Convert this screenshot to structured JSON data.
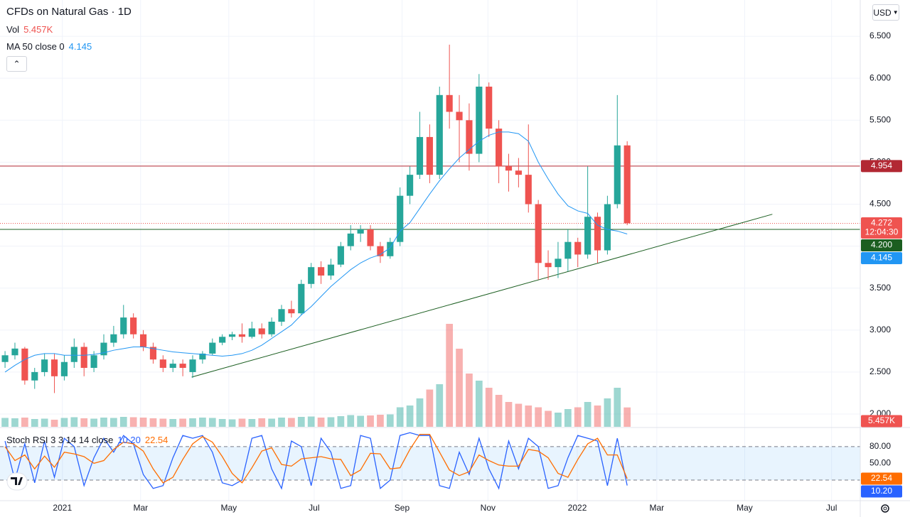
{
  "ui": {
    "currency": "USD"
  },
  "chart_data": [
    {
      "type": "candlestick",
      "title": "CFDs on Natural Gas · 1D",
      "xlim": [
        -0.51,
        86.6
      ],
      "xticks": [
        {
          "value": 5.81,
          "label": "2021"
        },
        {
          "value": 13.73,
          "label": "Mar"
        },
        {
          "value": 22.66,
          "label": "May"
        },
        {
          "value": 31.3,
          "label": "Jul"
        },
        {
          "value": 40.2,
          "label": "Sep"
        },
        {
          "value": 48.9,
          "label": "Nov"
        },
        {
          "value": 57.95,
          "label": "2022"
        },
        {
          "value": 66.0,
          "label": "Mar"
        },
        {
          "value": 74.9,
          "label": "May"
        },
        {
          "value": 83.7,
          "label": "Jul"
        }
      ],
      "ylim": [
        1.848,
        6.932
      ],
      "yticks": [
        {
          "value": 2,
          "label": "2.000"
        },
        {
          "value": 2.5,
          "label": "2.500"
        },
        {
          "value": 3,
          "label": "3.000"
        },
        {
          "value": 3.5,
          "label": "3.500"
        },
        {
          "value": 4,
          "label": "4.000"
        },
        {
          "value": 4.5,
          "label": "4.500"
        },
        {
          "value": 5,
          "label": "5.000"
        },
        {
          "value": 5.5,
          "label": "5.500"
        },
        {
          "value": 6,
          "label": "6.000"
        },
        {
          "value": 6.5,
          "label": "6.500"
        }
      ],
      "grid": true,
      "up_color": "#26a69a",
      "down_color": "#ef5350",
      "open": [
        2.62,
        2.7,
        2.78,
        2.4,
        2.5,
        2.65,
        2.45,
        2.62,
        2.8,
        2.55,
        2.7,
        2.85,
        2.95,
        3.15,
        2.95,
        2.8,
        2.65,
        2.55,
        2.6,
        2.5,
        2.65,
        2.72,
        2.85,
        2.92,
        2.95,
        2.92,
        3.02,
        2.95,
        3.1,
        3.25,
        3.2,
        3.55,
        3.75,
        3.65,
        3.78,
        4.0,
        4.15,
        4.2,
        4.0,
        3.88,
        4.05,
        4.6,
        4.85,
        5.3,
        4.85,
        5.8,
        5.6,
        5.5,
        5.1,
        5.9,
        5.4,
        4.95,
        4.9,
        4.85,
        4.5,
        3.8,
        3.75,
        3.85,
        4.05,
        3.9,
        4.35,
        3.95,
        4.5,
        5.2
      ],
      "high": [
        2.75,
        2.85,
        2.8,
        2.55,
        2.72,
        2.72,
        2.7,
        2.9,
        2.85,
        2.75,
        2.95,
        3.05,
        3.3,
        3.2,
        3.0,
        2.85,
        2.7,
        2.65,
        2.65,
        2.7,
        2.75,
        2.9,
        2.95,
        2.98,
        3.08,
        3.1,
        3.08,
        3.15,
        3.3,
        3.35,
        3.6,
        3.8,
        3.82,
        3.85,
        4.05,
        4.25,
        4.25,
        4.25,
        4.05,
        4.1,
        4.7,
        4.95,
        5.6,
        5.45,
        5.9,
        6.4,
        5.8,
        5.7,
        6.05,
        5.95,
        5.5,
        5.1,
        5.05,
        5.45,
        4.55,
        3.95,
        4.05,
        4.2,
        4.1,
        4.95,
        4.4,
        4.6,
        5.8,
        5.25
      ],
      "low": [
        2.55,
        2.65,
        2.35,
        2.3,
        2.45,
        2.25,
        2.4,
        2.55,
        2.45,
        2.5,
        2.65,
        2.8,
        2.9,
        2.9,
        2.75,
        2.6,
        2.5,
        2.5,
        2.45,
        2.43,
        2.6,
        2.7,
        2.82,
        2.88,
        2.85,
        2.9,
        2.9,
        2.92,
        3.05,
        3.15,
        3.18,
        3.5,
        3.55,
        3.6,
        3.75,
        3.95,
        4.05,
        3.95,
        3.8,
        3.85,
        4.0,
        4.5,
        4.8,
        4.75,
        4.8,
        5.4,
        5.0,
        4.9,
        5.0,
        5.3,
        4.75,
        4.65,
        4.7,
        4.4,
        3.6,
        3.6,
        3.62,
        3.7,
        3.75,
        3.85,
        3.8,
        3.9,
        4.45,
        4.25
      ],
      "close": [
        2.7,
        2.78,
        2.4,
        2.5,
        2.65,
        2.45,
        2.62,
        2.8,
        2.55,
        2.7,
        2.85,
        2.95,
        3.15,
        2.95,
        2.8,
        2.65,
        2.55,
        2.6,
        2.55,
        2.65,
        2.72,
        2.85,
        2.92,
        2.95,
        2.92,
        3.02,
        2.95,
        3.1,
        3.25,
        3.2,
        3.55,
        3.75,
        3.65,
        3.78,
        4.0,
        4.15,
        4.2,
        4.0,
        3.88,
        4.05,
        4.6,
        4.85,
        5.3,
        4.85,
        5.8,
        5.6,
        5.5,
        5.1,
        5.9,
        5.4,
        4.95,
        4.9,
        4.85,
        4.5,
        3.8,
        3.75,
        3.85,
        4.05,
        3.9,
        4.35,
        3.95,
        4.5,
        5.2,
        4.272
      ],
      "volume": {
        "name": "Vol",
        "values": [
          2.5,
          2.4,
          2.6,
          2.2,
          2.3,
          2.0,
          2.5,
          2.7,
          2.4,
          2.3,
          2.6,
          2.5,
          2.8,
          2.7,
          2.6,
          2.4,
          2.3,
          2.2,
          2.3,
          2.4,
          2.6,
          2.5,
          2.2,
          2.1,
          2.3,
          2.2,
          2.4,
          2.3,
          2.6,
          2.5,
          2.8,
          2.9,
          2.6,
          2.7,
          3.0,
          3.3,
          3.1,
          3.2,
          3.4,
          3.5,
          5.5,
          6.0,
          8.0,
          10.5,
          12.0,
          29.0,
          22.0,
          15.0,
          13.0,
          11.0,
          9.0,
          7.0,
          6.5,
          6.0,
          5.5,
          4.5,
          4.0,
          5.0,
          5.5,
          7.0,
          6.0,
          8.0,
          11.0,
          5.457
        ],
        "last_label": "5.457K"
      },
      "ma": {
        "name": "MA 50 close 0",
        "color": "#2196f3",
        "values": [
          2.5,
          2.58,
          2.65,
          2.7,
          2.72,
          2.72,
          2.7,
          2.7,
          2.7,
          2.71,
          2.73,
          2.76,
          2.78,
          2.8,
          2.8,
          2.78,
          2.76,
          2.74,
          2.73,
          2.72,
          2.71,
          2.7,
          2.69,
          2.7,
          2.72,
          2.76,
          2.82,
          2.9,
          2.98,
          3.06,
          3.18,
          3.28,
          3.4,
          3.52,
          3.62,
          3.72,
          3.8,
          3.86,
          3.9,
          3.98,
          4.18,
          4.28,
          4.45,
          4.62,
          4.78,
          4.92,
          5.05,
          5.15,
          5.25,
          5.32,
          5.36,
          5.36,
          5.34,
          5.25,
          5.0,
          4.8,
          4.62,
          4.48,
          4.42,
          4.39,
          4.25,
          4.2,
          4.18,
          4.145
        ]
      },
      "levels": [
        {
          "value": 4.954,
          "label": "4.954",
          "color": "#b22833"
        },
        {
          "value": 4.2,
          "label": "4.200",
          "color": "#1b5e20"
        }
      ],
      "last_price": 4.272,
      "countdown": "12:04:30",
      "trendline": {
        "x": [
          18.9,
          77.7
        ],
        "y": [
          2.44,
          4.38
        ],
        "color": "#1b5e20"
      }
    },
    {
      "type": "line",
      "title": "Stoch RSI 3 3 14 14 close",
      "ylim": [
        -17,
        113
      ],
      "yticks": [
        {
          "value": 20,
          "label": "20.00"
        },
        {
          "value": 50,
          "label": "50.00"
        },
        {
          "value": 80,
          "label": "80.00"
        }
      ],
      "band": [
        20,
        80
      ],
      "series": [
        {
          "color": "#2962ff",
          "last_label": "10.20",
          "values": [
            90,
            20,
            85,
            15,
            90,
            25,
            95,
            80,
            10,
            60,
            95,
            70,
            100,
            85,
            30,
            5,
            10,
            60,
            100,
            95,
            100,
            70,
            15,
            10,
            20,
            95,
            100,
            40,
            5,
            90,
            80,
            10,
            95,
            70,
            5,
            10,
            100,
            95,
            5,
            20,
            100,
            105,
            100,
            100,
            10,
            5,
            70,
            30,
            95,
            40,
            5,
            90,
            40,
            95,
            80,
            5,
            10,
            60,
            100,
            95,
            90,
            10,
            95,
            10.2
          ]
        },
        {
          "color": "#ff6d00",
          "last_label": "22.54",
          "values": [
            80,
            55,
            65,
            40,
            63,
            43,
            70,
            67,
            62,
            50,
            55,
            75,
            88,
            85,
            72,
            40,
            15,
            25,
            57,
            85,
            98,
            88,
            62,
            32,
            15,
            42,
            72,
            78,
            48,
            45,
            58,
            60,
            62,
            58,
            57,
            28,
            38,
            68,
            67,
            40,
            42,
            75,
            102,
            102,
            70,
            38,
            28,
            35,
            65,
            55,
            47,
            45,
            45,
            75,
            72,
            60,
            32,
            25,
            57,
            85,
            95,
            65,
            65,
            22.54
          ]
        }
      ]
    }
  ]
}
